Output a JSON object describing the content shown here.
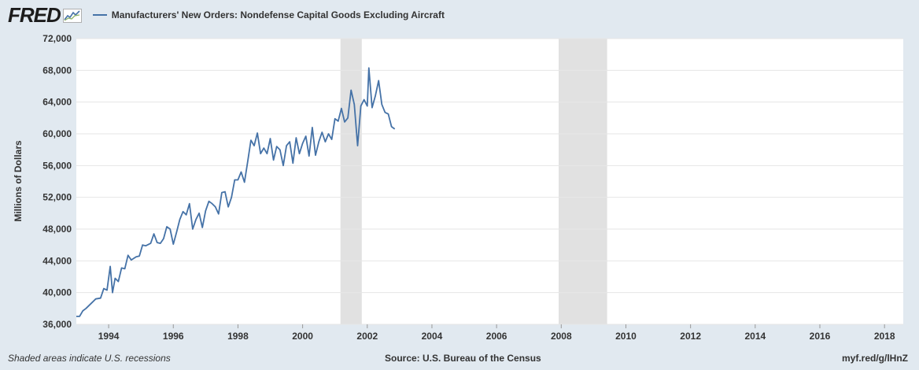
{
  "header": {
    "logo_text": "FRED",
    "series_title": "Manufacturers' New Orders: Nondefense Capital Goods Excluding Aircraft"
  },
  "footer": {
    "left_note": "Shaded areas indicate U.S. recessions",
    "source": "Source: U.S. Bureau of the Census",
    "short_url": "myf.red/g/lHnZ"
  },
  "colors": {
    "background": "#e1e9f0",
    "plot_background": "#ffffff",
    "line": "#4572a7",
    "recession": "#e1e1e1",
    "grid": "#e6e6e6"
  },
  "chart_data": {
    "type": "line",
    "title": "Manufacturers' New Orders: Nondefense Capital Goods Excluding Aircraft",
    "xlabel": "",
    "ylabel": "Millions of Dollars",
    "ylim": [
      36000,
      72000
    ],
    "xlim": [
      1993.0,
      2018.58
    ],
    "y_ticks": [
      {
        "value": 36000,
        "label": "36,000"
      },
      {
        "value": 40000,
        "label": "40,000"
      },
      {
        "value": 44000,
        "label": "44,000"
      },
      {
        "value": 48000,
        "label": "48,000"
      },
      {
        "value": 52000,
        "label": "52,000"
      },
      {
        "value": 56000,
        "label": "56,000"
      },
      {
        "value": 60000,
        "label": "60,000"
      },
      {
        "value": 64000,
        "label": "64,000"
      },
      {
        "value": 68000,
        "label": "68,000"
      },
      {
        "value": 72000,
        "label": "72,000"
      }
    ],
    "x_ticks": [
      {
        "value": 1994,
        "label": "1994"
      },
      {
        "value": 1996,
        "label": "1996"
      },
      {
        "value": 1998,
        "label": "1998"
      },
      {
        "value": 2000,
        "label": "2000"
      },
      {
        "value": 2002,
        "label": "2002"
      },
      {
        "value": 2004,
        "label": "2004"
      },
      {
        "value": 2006,
        "label": "2006"
      },
      {
        "value": 2008,
        "label": "2008"
      },
      {
        "value": 2010,
        "label": "2010"
      },
      {
        "value": 2012,
        "label": "2012"
      },
      {
        "value": 2014,
        "label": "2014"
      },
      {
        "value": 2016,
        "label": "2016"
      },
      {
        "value": 2018,
        "label": "2018"
      }
    ],
    "grid": true,
    "recessions": [
      {
        "start": 2001.17,
        "end": 2001.83
      },
      {
        "start": 2007.92,
        "end": 2009.42
      }
    ],
    "series": [
      {
        "name": "Manufacturers' New Orders: Nondefense Capital Goods Excluding Aircraft",
        "points": [
          [
            1993.0,
            37000
          ],
          [
            1993.1,
            37000
          ],
          [
            1993.2,
            37700
          ],
          [
            1993.3,
            38000
          ],
          [
            1993.5,
            38800
          ],
          [
            1993.6,
            39200
          ],
          [
            1993.75,
            39300
          ],
          [
            1993.85,
            40500
          ],
          [
            1993.95,
            40300
          ],
          [
            1994.05,
            43300
          ],
          [
            1994.12,
            40000
          ],
          [
            1994.2,
            41800
          ],
          [
            1994.3,
            41400
          ],
          [
            1994.4,
            43100
          ],
          [
            1994.5,
            43000
          ],
          [
            1994.6,
            44700
          ],
          [
            1994.7,
            44100
          ],
          [
            1994.85,
            44500
          ],
          [
            1994.95,
            44600
          ],
          [
            1995.05,
            46000
          ],
          [
            1995.15,
            45900
          ],
          [
            1995.3,
            46200
          ],
          [
            1995.4,
            47400
          ],
          [
            1995.5,
            46300
          ],
          [
            1995.6,
            46200
          ],
          [
            1995.7,
            46800
          ],
          [
            1995.8,
            48300
          ],
          [
            1995.9,
            48000
          ],
          [
            1996.0,
            46100
          ],
          [
            1996.1,
            47600
          ],
          [
            1996.2,
            49200
          ],
          [
            1996.3,
            50200
          ],
          [
            1996.4,
            49800
          ],
          [
            1996.5,
            51200
          ],
          [
            1996.6,
            48000
          ],
          [
            1996.7,
            49200
          ],
          [
            1996.8,
            50000
          ],
          [
            1996.9,
            48200
          ],
          [
            1997.0,
            50300
          ],
          [
            1997.1,
            51500
          ],
          [
            1997.2,
            51200
          ],
          [
            1997.3,
            50800
          ],
          [
            1997.4,
            49900
          ],
          [
            1997.5,
            52600
          ],
          [
            1997.6,
            52700
          ],
          [
            1997.7,
            50800
          ],
          [
            1997.8,
            52000
          ],
          [
            1997.9,
            54200
          ],
          [
            1998.0,
            54200
          ],
          [
            1998.1,
            55200
          ],
          [
            1998.2,
            53900
          ],
          [
            1998.3,
            56500
          ],
          [
            1998.4,
            59200
          ],
          [
            1998.5,
            58500
          ],
          [
            1998.6,
            60100
          ],
          [
            1998.7,
            57500
          ],
          [
            1998.8,
            58200
          ],
          [
            1998.9,
            57500
          ],
          [
            1999.0,
            59400
          ],
          [
            1999.1,
            56700
          ],
          [
            1999.2,
            58400
          ],
          [
            1999.3,
            58000
          ],
          [
            1999.4,
            56000
          ],
          [
            1999.5,
            58500
          ],
          [
            1999.6,
            59000
          ],
          [
            1999.7,
            56300
          ],
          [
            1999.8,
            59500
          ],
          [
            1999.9,
            57500
          ],
          [
            2000.0,
            58800
          ],
          [
            2000.1,
            59700
          ],
          [
            2000.2,
            57200
          ],
          [
            2000.3,
            60800
          ],
          [
            2000.4,
            57300
          ],
          [
            2000.5,
            59000
          ],
          [
            2000.6,
            60200
          ],
          [
            2000.7,
            59000
          ],
          [
            2000.8,
            60000
          ],
          [
            2000.9,
            59300
          ],
          [
            2001.0,
            61900
          ],
          [
            2001.1,
            61600
          ],
          [
            2001.2,
            63200
          ],
          [
            2001.3,
            61500
          ],
          [
            2001.4,
            62000
          ],
          [
            2001.5,
            65500
          ],
          [
            2001.6,
            63700
          ],
          [
            2001.7,
            58500
          ],
          [
            2001.8,
            63500
          ],
          [
            2001.9,
            64300
          ],
          [
            2002.0,
            63500
          ],
          [
            2002.05,
            68300
          ],
          [
            2002.15,
            63300
          ],
          [
            2002.25,
            64800
          ],
          [
            2002.35,
            66700
          ],
          [
            2002.45,
            63700
          ],
          [
            2002.55,
            62700
          ],
          [
            2002.65,
            62500
          ],
          [
            2002.75,
            60900
          ],
          [
            2002.85,
            60600
          ]
        ]
      }
    ]
  }
}
